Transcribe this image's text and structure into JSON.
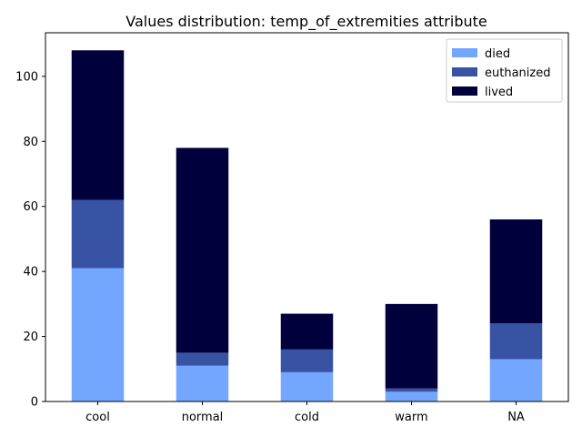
{
  "chart_data": {
    "type": "bar",
    "stacked": true,
    "title": "Values distribution: temp_of_extremities attribute",
    "xlabel": "",
    "ylabel": "",
    "categories": [
      "cool",
      "normal",
      "cold",
      "warm",
      "NA"
    ],
    "series": [
      {
        "name": "died",
        "color": "#72a6ff",
        "values": [
          41,
          11,
          9,
          3,
          13
        ]
      },
      {
        "name": "euthanized",
        "color": "#3953a4",
        "values": [
          21,
          4,
          7,
          1,
          11
        ]
      },
      {
        "name": "lived",
        "color": "#00003c",
        "values": [
          46,
          63,
          11,
          26,
          32
        ]
      }
    ],
    "ylim": [
      0,
      113.4
    ],
    "yticks": [
      0,
      20,
      40,
      60,
      80,
      100
    ],
    "grid": false,
    "legend_position": "top-right"
  }
}
